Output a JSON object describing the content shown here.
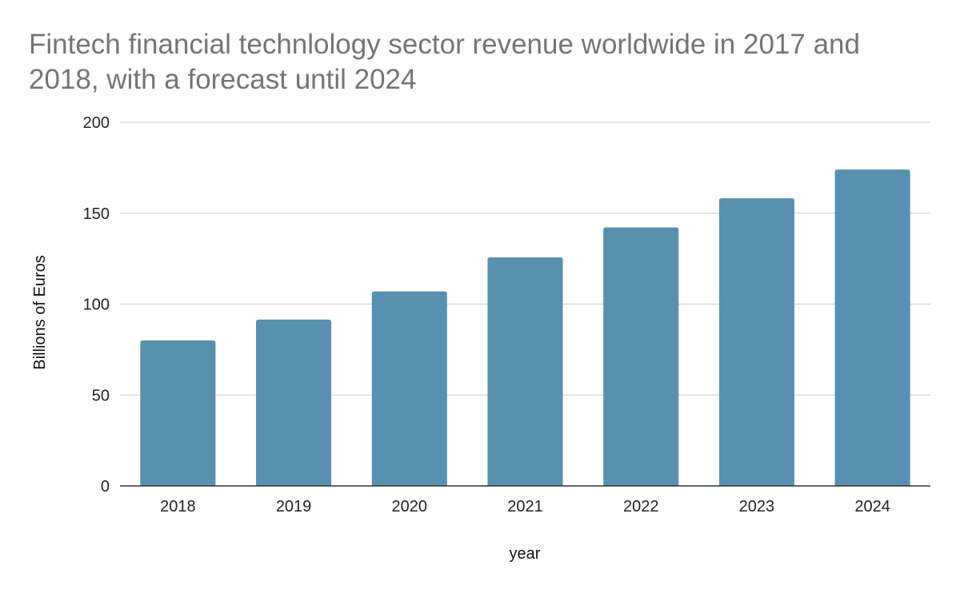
{
  "chart_data": {
    "type": "bar",
    "title": "Fintech financial technlology sector revenue worldwide in 2017 and 2018, with a forecast until 2024",
    "xlabel": "year",
    "ylabel": "Billions of Euros",
    "categories": [
      "2018",
      "2019",
      "2020",
      "2021",
      "2022",
      "2023",
      "2024"
    ],
    "series": [
      {
        "values": [
          80,
          91.5,
          107,
          125.7,
          142.2,
          158.2,
          174
        ]
      }
    ],
    "ylim": [
      0,
      200
    ],
    "yticks": [
      0,
      50,
      100,
      150,
      200
    ],
    "grid": true,
    "legend": "none",
    "colors": {
      "bar": "#5891b0",
      "title": "#757575"
    }
  }
}
